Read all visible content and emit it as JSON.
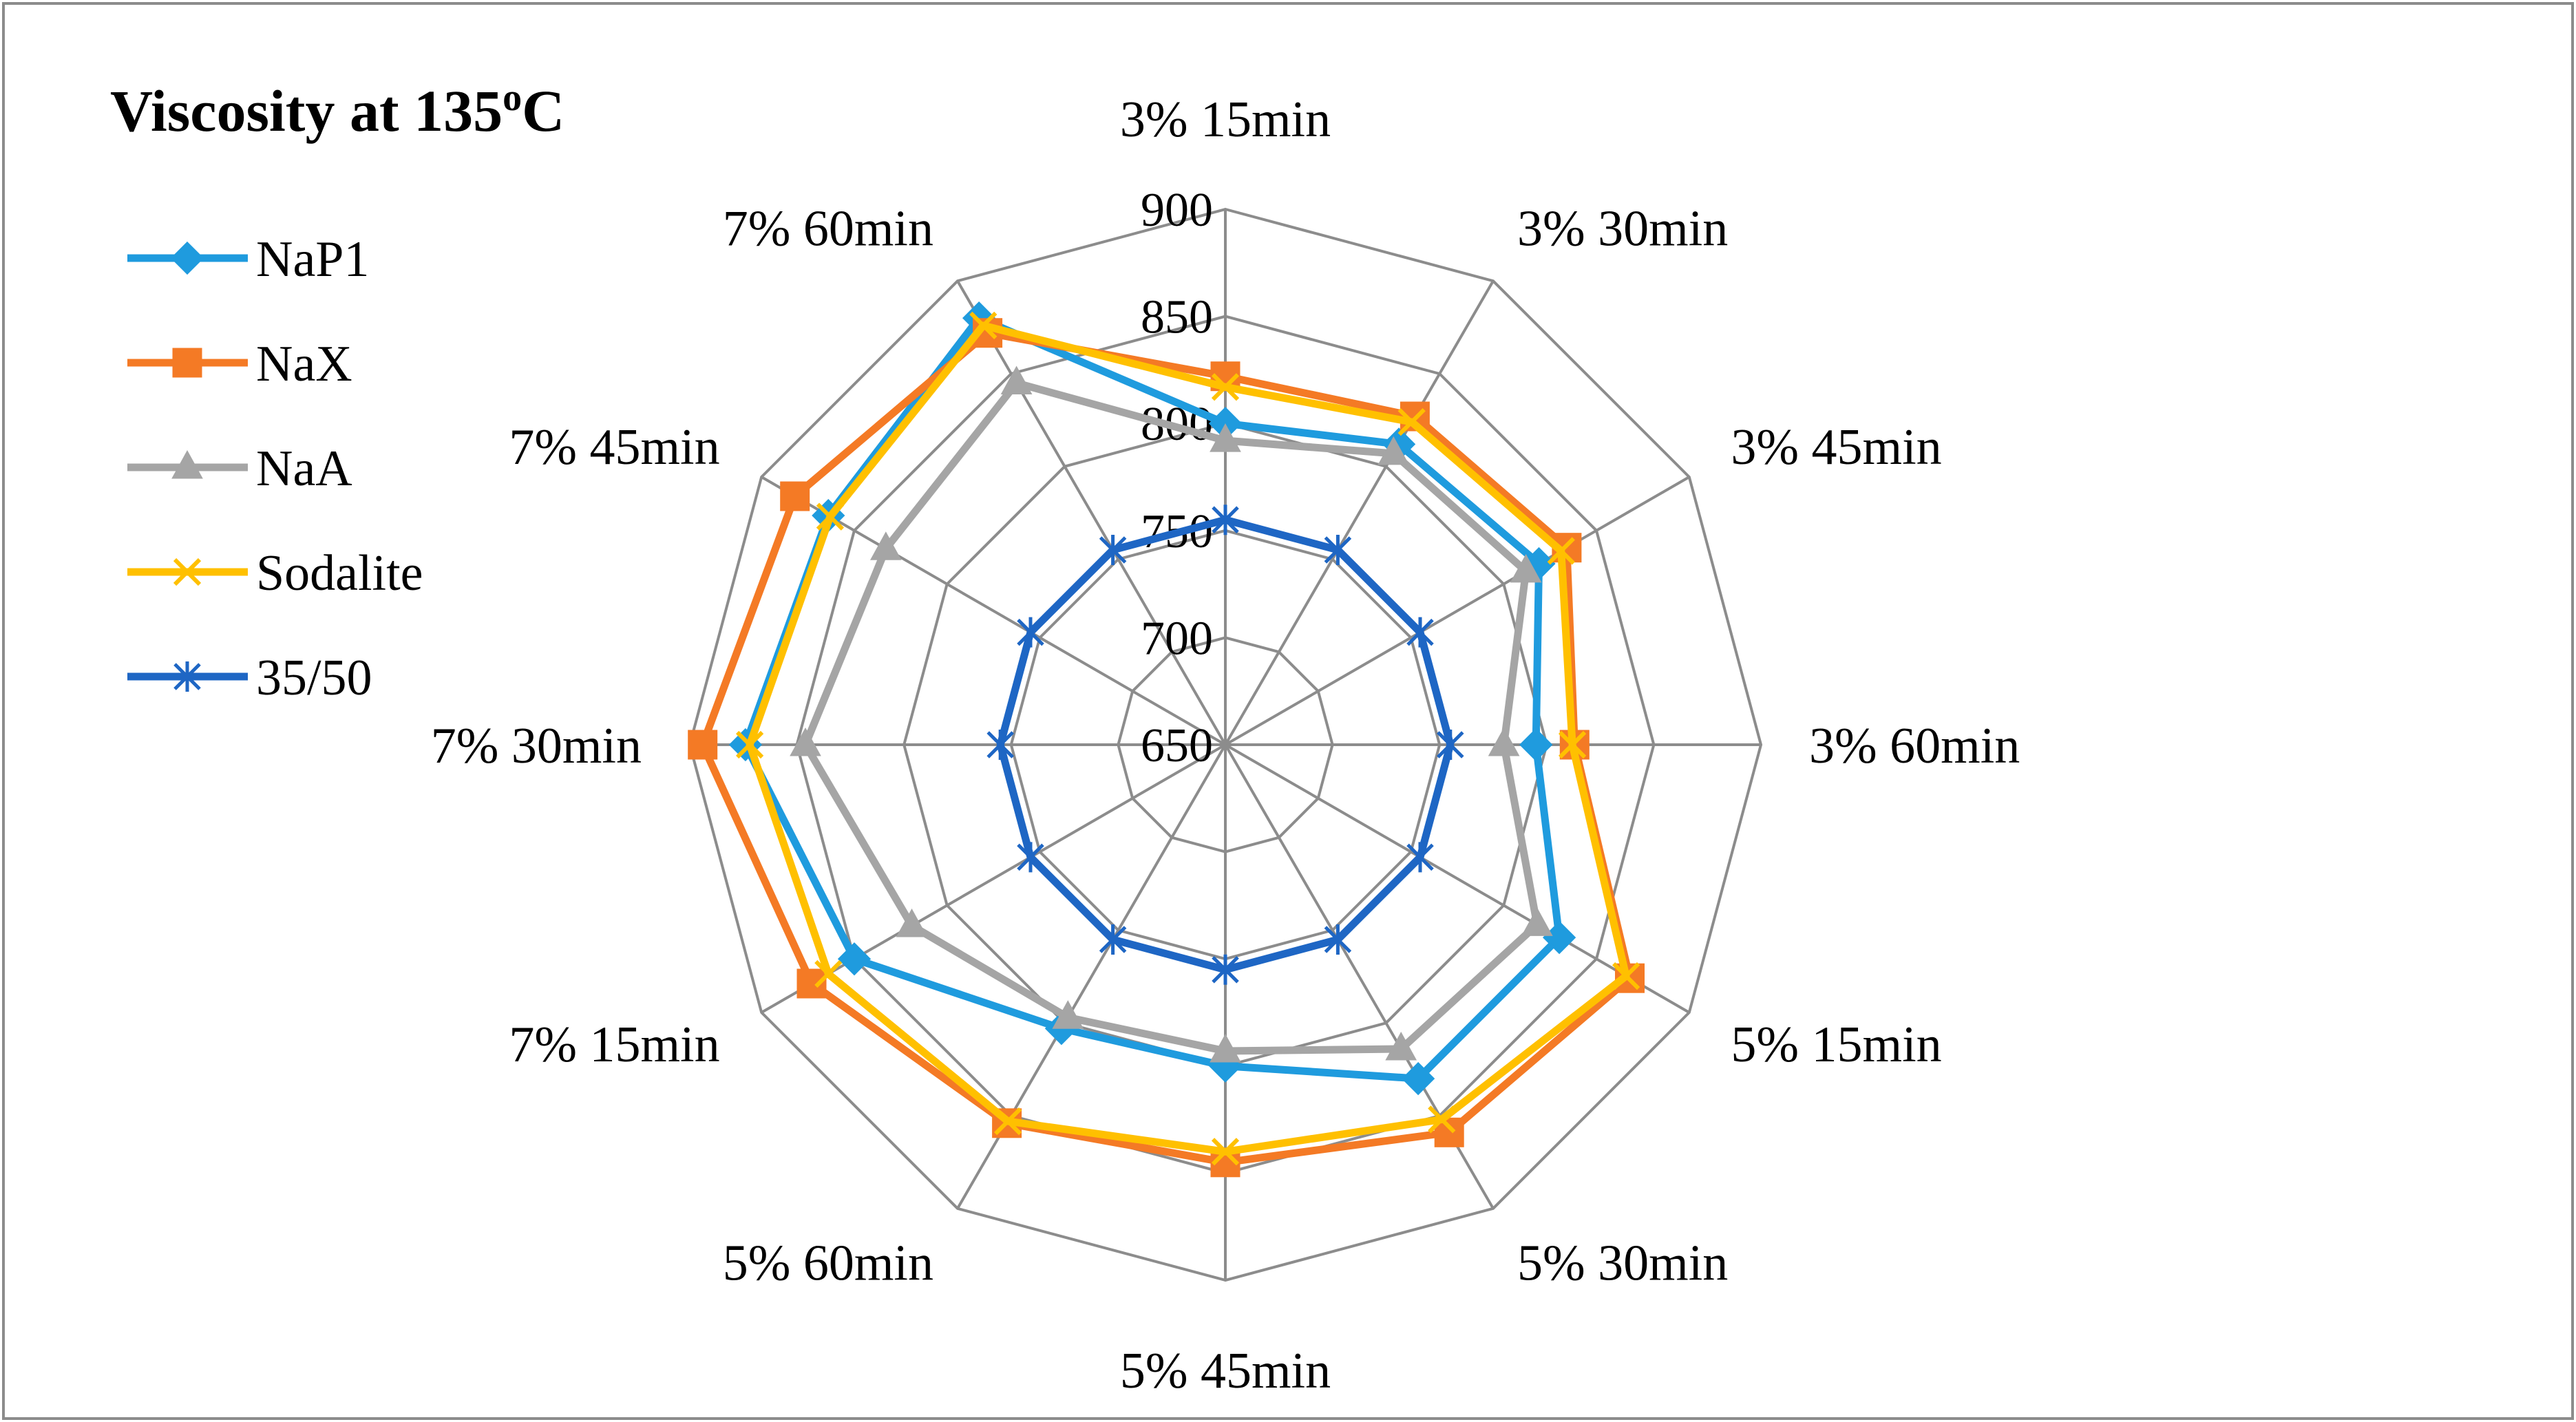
{
  "chart_data": {
    "type": "radar",
    "title": "Viscosity  at 135",
    "title_sup": "o",
    "title_suffix": "C",
    "categories": [
      "3% 15min",
      "3% 30min",
      "3% 45min",
      "3% 60min",
      "5% 15min",
      "5% 30min",
      "5% 45min",
      "5% 60min",
      "7% 15min",
      "7% 30min",
      "7% 45min",
      "7% 60min"
    ],
    "rlim": [
      650,
      900
    ],
    "ticks": [
      650,
      700,
      750,
      800,
      850,
      900
    ],
    "series": [
      {
        "name": "NaP1",
        "color": "#1F9BDE",
        "marker": "diamond",
        "values": [
          800,
          812,
          819,
          795,
          830,
          830,
          800,
          803,
          850,
          874,
          864,
          880
        ]
      },
      {
        "name": "NaX",
        "color": "#F47A25",
        "marker": "square",
        "values": [
          822,
          827,
          834,
          813,
          868,
          859,
          845,
          854,
          873,
          894,
          882,
          872
        ]
      },
      {
        "name": "NaA",
        "color": "#A5A5A5",
        "marker": "triangle",
        "values": [
          792,
          807,
          812,
          780,
          818,
          814,
          793,
          797,
          819,
          846,
          833,
          845
        ]
      },
      {
        "name": "Sodalite",
        "color": "#FFC000",
        "marker": "x",
        "values": [
          817,
          824,
          831,
          812,
          866,
          852,
          840,
          853,
          864,
          872,
          863,
          876
        ]
      },
      {
        "name": "35/50",
        "color": "#1E66C4",
        "marker": "star",
        "values": [
          755,
          755,
          755,
          755,
          755,
          755,
          755,
          755,
          755,
          755,
          755,
          755
        ]
      }
    ]
  }
}
